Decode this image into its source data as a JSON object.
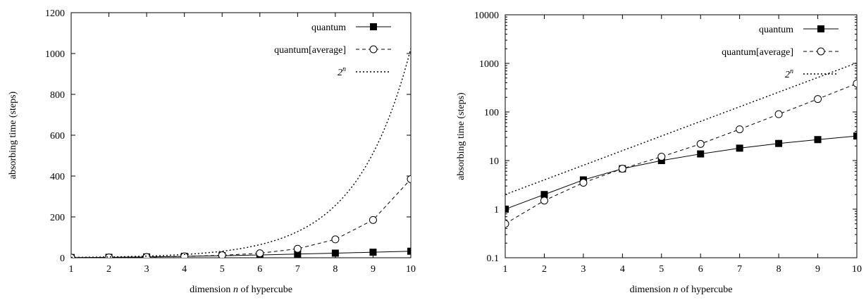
{
  "chart_data": [
    {
      "type": "line",
      "x": [
        1,
        2,
        3,
        4,
        5,
        6,
        7,
        8,
        9,
        10
      ],
      "xlim": [
        1,
        10
      ],
      "ylim": [
        0,
        1200
      ],
      "yscale": "linear",
      "xticks": [
        "1",
        "2",
        "3",
        "4",
        "5",
        "6",
        "7",
        "8",
        "9",
        "10"
      ],
      "yticks": [
        "0",
        "200",
        "400",
        "600",
        "800",
        "1000",
        "1200"
      ],
      "ytick_values": [
        0,
        200,
        400,
        600,
        800,
        1000,
        1200
      ],
      "xlabel_pre": "dimension ",
      "xlabel_var": "n",
      "xlabel_post": " of hypercube",
      "ylabel": "absorbing time (steps)",
      "legend_position": "top-right",
      "series": [
        {
          "name": "quantum",
          "style": "solid",
          "marker": "filled-square",
          "values": [
            1,
            2,
            4,
            6.8,
            10,
            13.7,
            18,
            22.5,
            27,
            32
          ]
        },
        {
          "name": "quantum[average]",
          "style": "dashed",
          "marker": "open-circle",
          "values": [
            0.5,
            1.5,
            3.5,
            6.8,
            12,
            22,
            44,
            90,
            185,
            385
          ]
        },
        {
          "name_base": "2",
          "name_sup": "n",
          "style": "dotted",
          "marker": "none",
          "function": "2^n"
        }
      ]
    },
    {
      "type": "line",
      "x": [
        1,
        2,
        3,
        4,
        5,
        6,
        7,
        8,
        9,
        10
      ],
      "xlim": [
        1,
        10
      ],
      "ylim": [
        0.1,
        10000
      ],
      "yscale": "log",
      "xticks": [
        "1",
        "2",
        "3",
        "4",
        "5",
        "6",
        "7",
        "8",
        "9",
        "10"
      ],
      "yticks": [
        "0.1",
        "1",
        "10",
        "100",
        "1000",
        "10000"
      ],
      "ytick_values": [
        0.1,
        1,
        10,
        100,
        1000,
        10000
      ],
      "xlabel_pre": "dimension ",
      "xlabel_var": "n",
      "xlabel_post": " of hypercube",
      "ylabel": "absorbing time (steps)",
      "legend_position": "top-right",
      "series": [
        {
          "name": "quantum",
          "style": "solid",
          "marker": "filled-square",
          "values": [
            1,
            2,
            4,
            6.8,
            10,
            13.7,
            18,
            22.5,
            27,
            32
          ]
        },
        {
          "name": "quantum[average]",
          "style": "dashed",
          "marker": "open-circle",
          "values": [
            0.5,
            1.5,
            3.5,
            6.8,
            12,
            22,
            44,
            90,
            185,
            385
          ]
        },
        {
          "name_base": "2",
          "name_sup": "n",
          "style": "dotted",
          "marker": "none",
          "function": "2^n"
        }
      ]
    }
  ]
}
